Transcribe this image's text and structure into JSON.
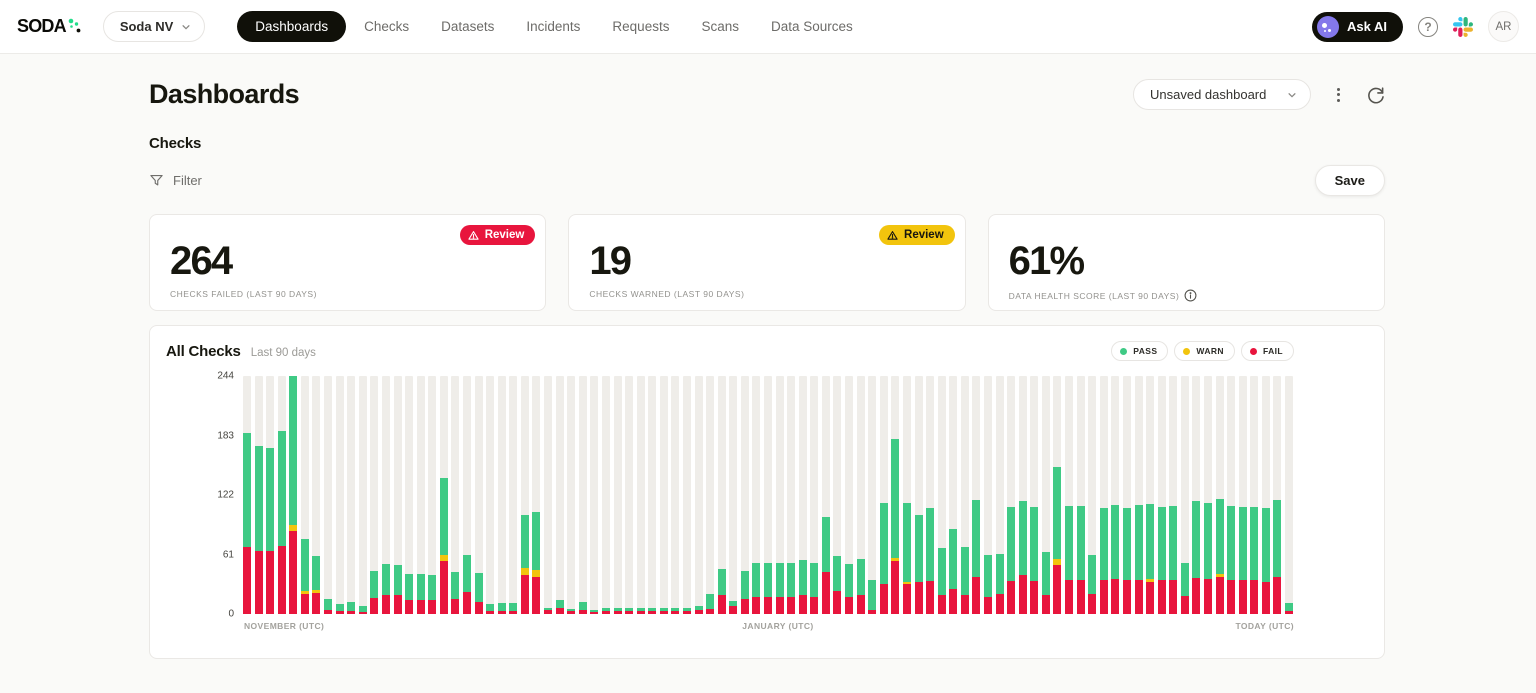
{
  "nav": {
    "logo_text": "SODA",
    "workspace": "Soda NV",
    "items": [
      {
        "label": "Dashboards",
        "active": true
      },
      {
        "label": "Checks",
        "active": false
      },
      {
        "label": "Datasets",
        "active": false
      },
      {
        "label": "Incidents",
        "active": false
      },
      {
        "label": "Requests",
        "active": false
      },
      {
        "label": "Scans",
        "active": false
      },
      {
        "label": "Data Sources",
        "active": false
      }
    ],
    "ask_ai_label": "Ask AI",
    "avatar_initials": "AR"
  },
  "page": {
    "title": "Dashboards",
    "dashboard_selector": "Unsaved dashboard",
    "section_title": "Checks",
    "filter_label": "Filter",
    "save_label": "Save"
  },
  "stats": [
    {
      "value": "264",
      "label": "CHECKS FAILED (LAST 90 DAYS)",
      "badge": "Review",
      "badge_color": "#e8153d"
    },
    {
      "value": "19",
      "label": "CHECKS WARNED (LAST 90 DAYS)",
      "badge": "Review",
      "badge_color": "#f2c40d"
    },
    {
      "value": "61%",
      "label": "DATA HEALTH SCORE (LAST 90 DAYS)",
      "badge": null
    }
  ],
  "chart_data": {
    "type": "bar",
    "stacked": true,
    "title": "All Checks",
    "subtitle": "Last 90 days",
    "legend": [
      {
        "label": "PASS",
        "color": "#3fca85"
      },
      {
        "label": "WARN",
        "color": "#f2c40d"
      },
      {
        "label": "FAIL",
        "color": "#e8153d"
      }
    ],
    "colors": {
      "fail": "#e8153d",
      "warn": "#f2c40d",
      "pass": "#3fca85"
    },
    "track_color": "#efede9",
    "ylim": [
      0,
      244
    ],
    "yticks": [
      244,
      183,
      122,
      61,
      0
    ],
    "xlabels": [
      "NOVEMBER (UTC)",
      "JANUARY (UTC)",
      "TODAY (UTC)"
    ],
    "series_order": [
      "fail",
      "warn",
      "pass"
    ],
    "bars": [
      [
        69,
        0,
        117
      ],
      [
        65,
        0,
        107
      ],
      [
        65,
        0,
        105
      ],
      [
        70,
        0,
        118
      ],
      [
        85,
        6,
        153
      ],
      [
        21,
        3,
        53
      ],
      [
        22,
        3,
        34
      ],
      [
        4,
        0,
        11
      ],
      [
        3,
        0,
        7
      ],
      [
        3,
        0,
        9
      ],
      [
        2,
        0,
        6
      ],
      [
        16,
        0,
        28
      ],
      [
        20,
        0,
        31
      ],
      [
        20,
        0,
        30
      ],
      [
        14,
        0,
        27
      ],
      [
        14,
        0,
        27
      ],
      [
        14,
        0,
        26
      ],
      [
        54,
        6,
        79
      ],
      [
        15,
        0,
        28
      ],
      [
        23,
        0,
        38
      ],
      [
        12,
        0,
        30
      ],
      [
        3,
        0,
        7
      ],
      [
        3,
        0,
        8
      ],
      [
        3,
        0,
        8
      ],
      [
        40,
        7,
        55
      ],
      [
        38,
        7,
        60
      ],
      [
        4,
        0,
        2
      ],
      [
        6,
        0,
        8
      ],
      [
        3,
        0,
        2
      ],
      [
        4,
        0,
        8
      ],
      [
        2,
        0,
        2
      ],
      [
        3,
        0,
        3
      ],
      [
        3,
        0,
        3
      ],
      [
        3,
        0,
        3
      ],
      [
        3,
        0,
        3
      ],
      [
        3,
        0,
        3
      ],
      [
        3,
        0,
        3
      ],
      [
        3,
        0,
        3
      ],
      [
        3,
        0,
        3
      ],
      [
        4,
        0,
        4
      ],
      [
        5,
        0,
        16
      ],
      [
        19,
        0,
        27
      ],
      [
        8,
        0,
        5
      ],
      [
        15,
        0,
        29
      ],
      [
        17,
        0,
        35
      ],
      [
        17,
        0,
        35
      ],
      [
        17,
        0,
        35
      ],
      [
        17,
        0,
        35
      ],
      [
        19,
        0,
        36
      ],
      [
        17,
        0,
        35
      ],
      [
        43,
        0,
        56
      ],
      [
        24,
        0,
        35
      ],
      [
        17,
        0,
        34
      ],
      [
        19,
        0,
        37
      ],
      [
        4,
        0,
        31
      ],
      [
        31,
        0,
        83
      ],
      [
        54,
        3,
        122
      ],
      [
        31,
        2,
        81
      ],
      [
        33,
        0,
        69
      ],
      [
        34,
        0,
        75
      ],
      [
        20,
        0,
        48
      ],
      [
        26,
        0,
        61
      ],
      [
        20,
        0,
        49
      ],
      [
        38,
        0,
        79
      ],
      [
        17,
        0,
        43
      ],
      [
        21,
        0,
        41
      ],
      [
        34,
        0,
        76
      ],
      [
        40,
        0,
        76
      ],
      [
        34,
        0,
        76
      ],
      [
        20,
        0,
        44
      ],
      [
        50,
        6,
        95
      ],
      [
        35,
        0,
        76
      ],
      [
        35,
        0,
        76
      ],
      [
        21,
        0,
        40
      ],
      [
        35,
        0,
        74
      ],
      [
        36,
        0,
        76
      ],
      [
        35,
        0,
        74
      ],
      [
        35,
        0,
        77
      ],
      [
        33,
        3,
        77
      ],
      [
        35,
        0,
        75
      ],
      [
        35,
        0,
        76
      ],
      [
        18,
        0,
        34
      ],
      [
        37,
        0,
        79
      ],
      [
        36,
        0,
        78
      ],
      [
        38,
        3,
        77
      ],
      [
        35,
        0,
        76
      ],
      [
        35,
        0,
        75
      ],
      [
        35,
        0,
        75
      ],
      [
        33,
        0,
        76
      ],
      [
        38,
        0,
        79
      ],
      [
        3,
        0,
        8
      ]
    ]
  }
}
